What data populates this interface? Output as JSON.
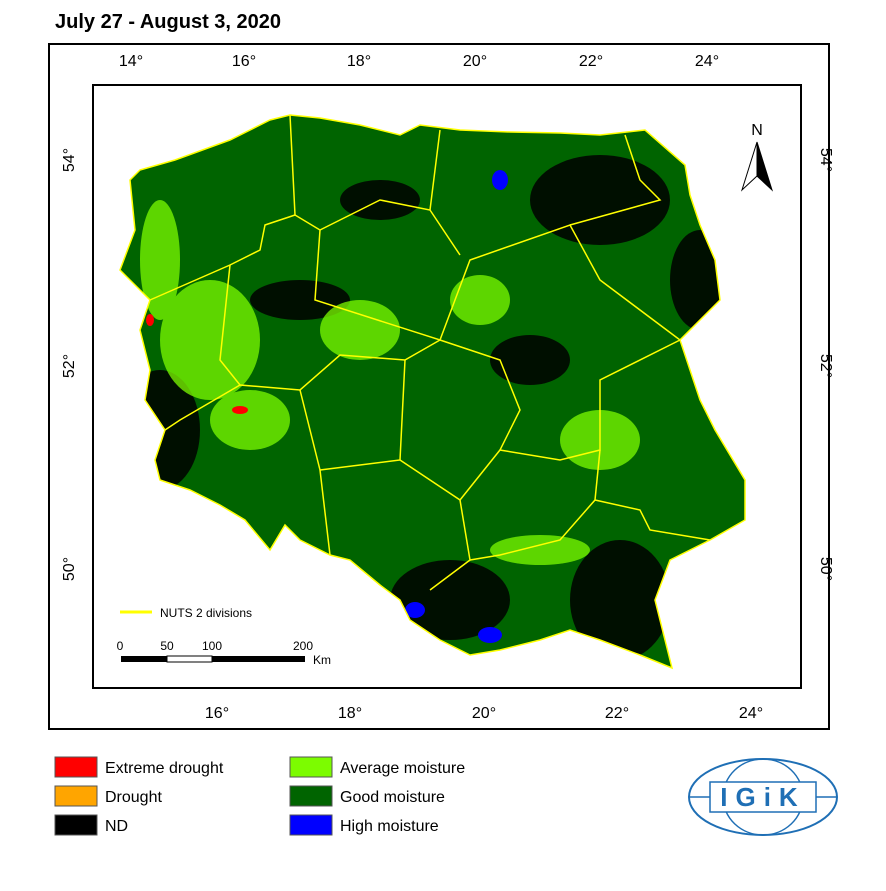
{
  "header": {
    "title": "July 27 - August 3, 2020"
  },
  "map": {
    "top_labels": [
      "14°",
      "16°",
      "18°",
      "20°",
      "22°",
      "24°"
    ],
    "bottom_labels": [
      "16°",
      "18°",
      "20°",
      "22°",
      "24°"
    ],
    "left_labels": [
      "54°",
      "52°",
      "50°"
    ],
    "right_labels": [
      "54°",
      "52°",
      "50°"
    ],
    "north": "N",
    "boundary_legend": "NUTS 2 divisions",
    "scale_labels": [
      "0",
      "50",
      "100",
      "200"
    ],
    "scale_unit": "Km"
  },
  "legend": [
    {
      "label": "Extreme drought",
      "color": "#ff0000"
    },
    {
      "label": "Drought",
      "color": "#ffa500"
    },
    {
      "label": "ND",
      "color": "#000000"
    },
    {
      "label": "Average moisture",
      "color": "#7cfc00"
    },
    {
      "label": "Good moisture",
      "color": "#006400"
    },
    {
      "label": "High moisture",
      "color": "#0000ff"
    }
  ],
  "logo": {
    "text": "IGiK"
  }
}
